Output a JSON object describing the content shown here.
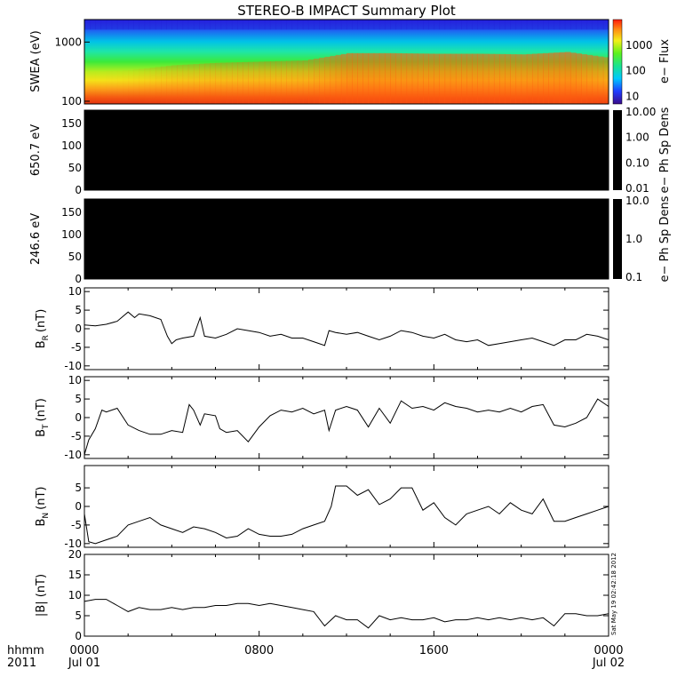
{
  "chart_data": {
    "type": "line",
    "title": "STEREO-B IMPACT Summary Plot",
    "x_axis": {
      "row_label": "hhmm",
      "year_label": "2011",
      "ticks": [
        {
          "time": "0000",
          "date": "Jul 01"
        },
        {
          "time": "0800",
          "date": ""
        },
        {
          "time": "1600",
          "date": ""
        },
        {
          "time": "0000",
          "date": "Jul 02"
        }
      ],
      "range_hours": [
        0,
        24
      ]
    },
    "timestamp": "Sat May 19 02:42:18 2012",
    "panels": [
      {
        "id": "swea",
        "type": "heatmap",
        "ylabel": "SWEA (eV)",
        "y_scale": "log",
        "ylim": [
          90,
          2400
        ],
        "yticks": [
          "1000",
          "100"
        ],
        "colorbar": {
          "label": "e− Flux",
          "scale": "log",
          "range": [
            5,
            10000
          ],
          "ticks": [
            "1000",
            "100",
            "10"
          ]
        },
        "description_values": {
          "hours": [
            0,
            2,
            4,
            6,
            8,
            10,
            11,
            12,
            14,
            16,
            18,
            20,
            22,
            24
          ],
          "low_energy_level": [
            0.55,
            0.58,
            0.66,
            0.7,
            0.72,
            0.74,
            0.8,
            0.86,
            0.86,
            0.85,
            0.85,
            0.84,
            0.88,
            0.78
          ]
        }
      },
      {
        "id": "pad650",
        "type": "heatmap",
        "ylabel": "650.7 eV",
        "ylim": [
          0,
          180
        ],
        "yticks": [
          "150",
          "100",
          "50",
          "0"
        ],
        "fill": "#000000",
        "colorbar": {
          "label": "e− Ph Sp Dens",
          "scale": "log",
          "ticks": [
            "10.00",
            "1.00",
            "0.10",
            "0.01"
          ]
        }
      },
      {
        "id": "pad246",
        "type": "heatmap",
        "ylabel": "246.6 eV",
        "ylim": [
          0,
          180
        ],
        "yticks": [
          "150",
          "100",
          "50",
          "0"
        ],
        "fill": "#000000",
        "colorbar": {
          "label": "e− Ph Sp Dens",
          "scale": "log",
          "ticks": [
            "10.0",
            "1.0",
            "0.1"
          ]
        }
      },
      {
        "id": "br",
        "type": "line",
        "ylabel": "B",
        "ylabel_sub": "R",
        "ylabel_unit": "(nT)",
        "ylim": [
          -11,
          11
        ],
        "yticks": [
          "10",
          "5",
          "0",
          "-5",
          "-10"
        ],
        "x": [
          0,
          0.5,
          1,
          1.5,
          2,
          2.3,
          2.5,
          3,
          3.5,
          3.8,
          4,
          4.2,
          4.5,
          5,
          5.3,
          5.5,
          6,
          6.5,
          7,
          7.5,
          8,
          8.5,
          9,
          9.5,
          10,
          10.5,
          11,
          11.2,
          11.5,
          12,
          12.5,
          13,
          13.5,
          14,
          14.5,
          15,
          15.5,
          16,
          16.5,
          17,
          17.5,
          18,
          18.5,
          19,
          19.5,
          20,
          20.5,
          21,
          21.5,
          22,
          22.5,
          23,
          23.5,
          24
        ],
        "y": [
          1,
          0.8,
          1.2,
          2,
          4.5,
          3,
          4,
          3.5,
          2.5,
          -2,
          -4,
          -3,
          -2.5,
          -2,
          3,
          -2,
          -2.5,
          -1.5,
          0,
          -0.5,
          -1,
          -2,
          -1.5,
          -2.5,
          -2.5,
          -3.5,
          -4.5,
          -0.5,
          -1,
          -1.5,
          -1,
          -2,
          -3,
          -2,
          -0.5,
          -1,
          -2,
          -2.5,
          -1.5,
          -3,
          -3.5,
          -3,
          -4.5,
          -4,
          -3.5,
          -3,
          -2.5,
          -3.5,
          -4.5,
          -3,
          -3,
          -1.5,
          -2,
          -3
        ]
      },
      {
        "id": "bt",
        "type": "line",
        "ylabel": "B",
        "ylabel_sub": "T",
        "ylabel_unit": "(nT)",
        "ylim": [
          -11,
          11
        ],
        "yticks": [
          "10",
          "5",
          "0",
          "-5",
          "-10"
        ],
        "x": [
          0,
          0.2,
          0.5,
          0.8,
          1,
          1.5,
          2,
          2.5,
          3,
          3.5,
          4,
          4.5,
          4.8,
          5,
          5.3,
          5.5,
          6,
          6.2,
          6.5,
          7,
          7.5,
          8,
          8.5,
          9,
          9.5,
          10,
          10.5,
          11,
          11.2,
          11.5,
          12,
          12.5,
          13,
          13.5,
          14,
          14.5,
          15,
          15.5,
          16,
          16.5,
          17,
          17.5,
          18,
          18.5,
          19,
          19.5,
          20,
          20.5,
          21,
          21.5,
          22,
          22.5,
          23,
          23.5,
          24
        ],
        "y": [
          -10,
          -6,
          -3,
          2,
          1.5,
          2.5,
          -2,
          -3.5,
          -4.5,
          -4.5,
          -3.5,
          -4,
          3.5,
          2,
          -2,
          1,
          0.5,
          -3,
          -4,
          -3.5,
          -6.5,
          -2.5,
          0.5,
          2,
          1.5,
          2.5,
          1,
          2,
          -3.5,
          2,
          3,
          2,
          -2.5,
          2.5,
          -1.5,
          4.5,
          2.5,
          3,
          2,
          4,
          3,
          2.5,
          1.5,
          2,
          1.5,
          2.5,
          1.5,
          3,
          3.5,
          -2,
          -2.5,
          -1.5,
          0,
          5,
          3
        ]
      },
      {
        "id": "bn",
        "type": "line",
        "ylabel": "B",
        "ylabel_sub": "N",
        "ylabel_unit": "(nT)",
        "ylim": [
          -11,
          11
        ],
        "yticks": [
          "5",
          "0",
          "-5",
          "-10"
        ],
        "x": [
          0,
          0.2,
          0.5,
          1,
          1.5,
          2,
          2.5,
          3,
          3.5,
          4,
          4.5,
          5,
          5.5,
          6,
          6.5,
          7,
          7.5,
          8,
          8.5,
          9,
          9.5,
          10,
          10.5,
          11,
          11.3,
          11.5,
          12,
          12.5,
          13,
          13.5,
          14,
          14.5,
          15,
          15.5,
          16,
          16.5,
          17,
          17.5,
          18,
          18.5,
          19,
          19.5,
          20,
          20.5,
          21,
          21.5,
          22,
          22.5,
          23,
          23.5,
          24
        ],
        "y": [
          -2,
          -9.5,
          -10,
          -9,
          -8,
          -5,
          -4,
          -3,
          -5,
          -6,
          -7,
          -5.5,
          -6,
          -7,
          -8.5,
          -8,
          -6,
          -7.5,
          -8,
          -8,
          -7.5,
          -6,
          -5,
          -4,
          0,
          5.5,
          5.5,
          3,
          4.5,
          0.5,
          2,
          5,
          5,
          -1,
          1,
          -3,
          -5,
          -2,
          -1,
          0,
          -2,
          1,
          -1,
          -2,
          2,
          -4,
          -4,
          -3,
          -2,
          -1,
          0
        ]
      },
      {
        "id": "bmag",
        "type": "line",
        "ylabel": "|B| (nT)",
        "ylim": [
          0,
          20
        ],
        "yticks": [
          "20",
          "15",
          "10",
          "5",
          "0"
        ],
        "x": [
          0,
          0.5,
          1,
          1.5,
          2,
          2.5,
          3,
          3.5,
          4,
          4.5,
          5,
          5.5,
          6,
          6.5,
          7,
          7.5,
          8,
          8.5,
          9,
          9.5,
          10,
          10.5,
          11,
          11.5,
          12,
          12.5,
          13,
          13.5,
          14,
          14.5,
          15,
          15.5,
          16,
          16.5,
          17,
          17.5,
          18,
          18.5,
          19,
          19.5,
          20,
          20.5,
          21,
          21.5,
          22,
          22.5,
          23,
          23.5,
          24
        ],
        "y": [
          8.5,
          9,
          9,
          7.5,
          6,
          7,
          6.5,
          6.5,
          7,
          6.5,
          7,
          7,
          7.5,
          7.5,
          8,
          8,
          7.5,
          8,
          7.5,
          7,
          6.5,
          6,
          2.5,
          5,
          4,
          4,
          2,
          5,
          4,
          4.5,
          4,
          4,
          4.5,
          3.5,
          4,
          4,
          4.5,
          4,
          4.5,
          4,
          4.5,
          4,
          4.5,
          2.5,
          5.5,
          5.5,
          5,
          5,
          5.5
        ]
      }
    ]
  }
}
